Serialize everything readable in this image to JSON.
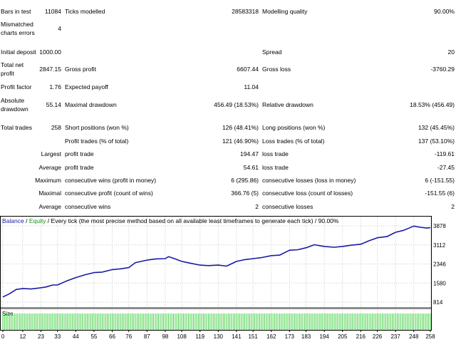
{
  "report": {
    "bars_in_test": {
      "label": "Bars in test",
      "value": "11084"
    },
    "ticks_modelled": {
      "label": "Ticks modelled",
      "value": "28583318"
    },
    "modelling_quality": {
      "label": "Modelling quality",
      "value": "90.00%"
    },
    "mismatched_errors": {
      "label_line1": "Mismatched",
      "label_line2": "charts errors",
      "value": "4"
    },
    "initial_deposit": {
      "label": "Initial deposit",
      "value": "1000.00"
    },
    "spread": {
      "label": "Spread",
      "value": "20"
    },
    "total_net_profit": {
      "label_line1": "Total net",
      "label_line2": "profit",
      "value": "2847.15"
    },
    "gross_profit": {
      "label": "Gross profit",
      "value": "6607.44"
    },
    "gross_loss": {
      "label": "Gross loss",
      "value": "-3760.29"
    },
    "profit_factor": {
      "label": "Profit factor",
      "value": "1.76"
    },
    "expected_payoff": {
      "label": "Expected payoff",
      "value": "11.04"
    },
    "absolute_drawdown": {
      "label_line1": "Absolute",
      "label_line2": "drawdown",
      "value": "55.14"
    },
    "maximal_drawdown": {
      "label": "Maximal drawdown",
      "value": "456.49 (18.53%)"
    },
    "relative_drawdown": {
      "label": "Relative drawdown",
      "value": "18.53% (456.49)"
    },
    "total_trades": {
      "label": "Total trades",
      "value": "258"
    },
    "short_positions": {
      "label": "Short positions (won %)",
      "value": "126 (48.41%)"
    },
    "long_positions": {
      "label": "Long positions (won %)",
      "value": "132 (45.45%)"
    },
    "profit_trades": {
      "label": "Profit trades (% of total)",
      "value": "121 (46.90%)"
    },
    "loss_trades": {
      "label": "Loss trades (% of total)",
      "value": "137 (53.10%)"
    },
    "largest": {
      "label": "Largest",
      "profit_label": "profit trade",
      "profit_value": "194.47",
      "loss_label": "loss trade",
      "loss_value": "-119.61"
    },
    "average": {
      "label": "Average",
      "profit_label": "profit trade",
      "profit_value": "54.61",
      "loss_label": "loss trade",
      "loss_value": "-27.45"
    },
    "maximum": {
      "label": "Maximum",
      "wins_label": "consecutive wins (profit in money)",
      "wins_value": "6 (295.86)",
      "losses_label": "consecutive losses (loss in money)",
      "losses_value": "6 (-151.55)"
    },
    "maximal": {
      "label": "Maximal",
      "profit_label": "consecutive profit (count of wins)",
      "profit_value": "366.76 (5)",
      "loss_label": "consecutive loss (count of losses)",
      "loss_value": "-151.55 (6)"
    },
    "average_consecutive": {
      "label": "Average",
      "wins_label": "consecutive wins",
      "wins_value": "2",
      "losses_label": "consecutive losses",
      "losses_value": "2"
    }
  },
  "chart_header": {
    "balance": "Balance",
    "sep1": " / ",
    "equity": "Equity",
    "rest": " / Every tick (the most precise method based on all available least timeframes to generate each tick) / 90.00%"
  },
  "size_label": "Size",
  "colors": {
    "balance": "#1a1aa6",
    "equity": "#1a8f1a",
    "volume": "#33cc33",
    "grid": "#c8c8c8",
    "gray_bar": "#8c8c8c"
  },
  "chart_data": {
    "type": "line",
    "y_ticks": [
      "3878",
      "3112",
      "2346",
      "1580",
      "814"
    ],
    "x_ticks": [
      "0",
      "12",
      "23",
      "33",
      "44",
      "55",
      "66",
      "76",
      "87",
      "98",
      "108",
      "119",
      "130",
      "141",
      "151",
      "162",
      "173",
      "183",
      "194",
      "205",
      "216",
      "226",
      "237",
      "248",
      "258"
    ],
    "ylim": [
      814,
      3878
    ],
    "xlim": [
      0,
      258
    ],
    "series": [
      {
        "name": "Balance",
        "x": [
          0,
          4,
          8,
          12,
          17,
          22,
          26,
          30,
          33,
          38,
          44,
          50,
          55,
          60,
          66,
          71,
          76,
          80,
          87,
          92,
          98,
          100,
          104,
          108,
          113,
          119,
          124,
          130,
          135,
          141,
          146,
          151,
          156,
          162,
          167,
          173,
          178,
          183,
          188,
          194,
          200,
          205,
          210,
          216,
          221,
          226,
          232,
          237,
          242,
          248,
          252,
          256,
          258
        ],
        "y": [
          1020,
          1150,
          1320,
          1360,
          1340,
          1380,
          1420,
          1500,
          1500,
          1650,
          1800,
          1920,
          2000,
          2020,
          2120,
          2150,
          2200,
          2400,
          2500,
          2550,
          2560,
          2640,
          2550,
          2450,
          2380,
          2300,
          2280,
          2300,
          2260,
          2450,
          2520,
          2560,
          2600,
          2680,
          2700,
          2900,
          2920,
          3000,
          3120,
          3050,
          3020,
          3050,
          3100,
          3140,
          3280,
          3400,
          3450,
          3620,
          3700,
          3870,
          3820,
          3790,
          3810
        ]
      }
    ]
  }
}
